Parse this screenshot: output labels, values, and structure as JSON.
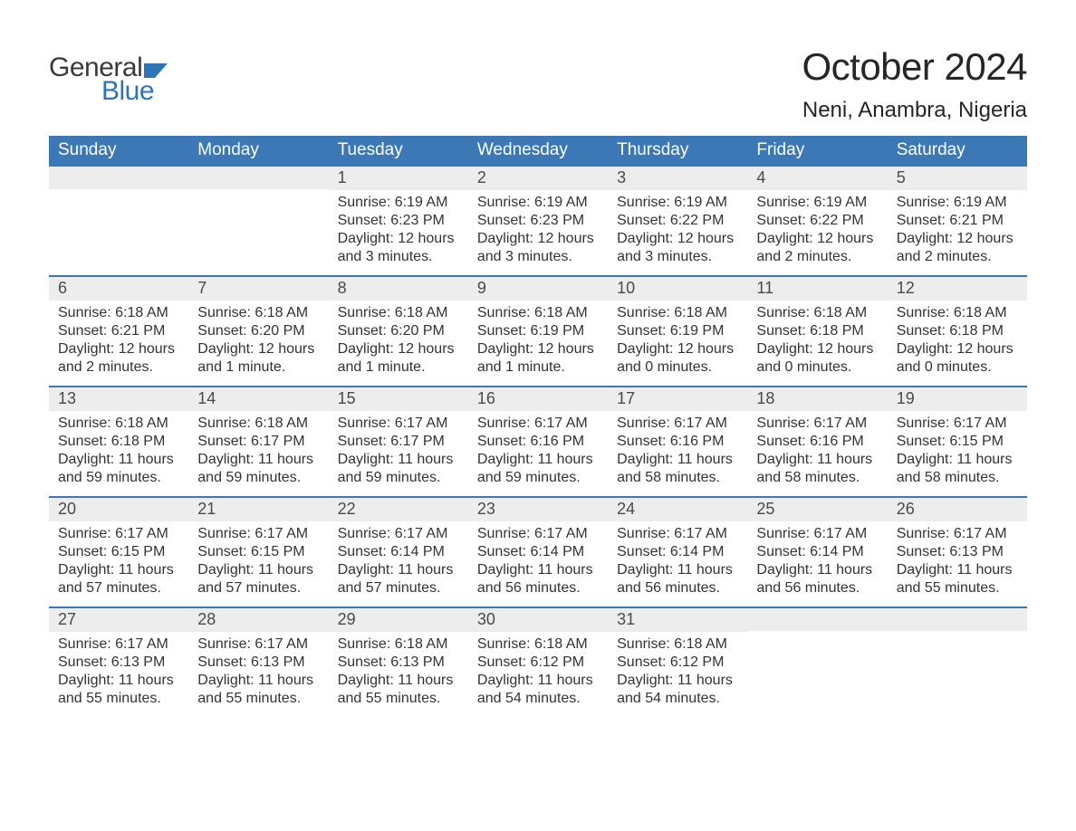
{
  "logo": {
    "text_general": "General",
    "text_blue": "Blue",
    "flag_color": "#2e75b6"
  },
  "title": "October 2024",
  "location": "Neni, Anambra, Nigeria",
  "colors": {
    "header_bg": "#3b78b5",
    "header_text": "#ffffff",
    "daynum_bg": "#ededed",
    "week_border": "#3b78b5",
    "body_text": "#333333",
    "title_text": "#262626"
  },
  "day_names": [
    "Sunday",
    "Monday",
    "Tuesday",
    "Wednesday",
    "Thursday",
    "Friday",
    "Saturday"
  ],
  "weeks": [
    [
      {
        "day": "",
        "sunrise": "",
        "sunset": "",
        "daylight1": "",
        "daylight2": ""
      },
      {
        "day": "",
        "sunrise": "",
        "sunset": "",
        "daylight1": "",
        "daylight2": ""
      },
      {
        "day": "1",
        "sunrise": "Sunrise: 6:19 AM",
        "sunset": "Sunset: 6:23 PM",
        "daylight1": "Daylight: 12 hours",
        "daylight2": "and 3 minutes."
      },
      {
        "day": "2",
        "sunrise": "Sunrise: 6:19 AM",
        "sunset": "Sunset: 6:23 PM",
        "daylight1": "Daylight: 12 hours",
        "daylight2": "and 3 minutes."
      },
      {
        "day": "3",
        "sunrise": "Sunrise: 6:19 AM",
        "sunset": "Sunset: 6:22 PM",
        "daylight1": "Daylight: 12 hours",
        "daylight2": "and 3 minutes."
      },
      {
        "day": "4",
        "sunrise": "Sunrise: 6:19 AM",
        "sunset": "Sunset: 6:22 PM",
        "daylight1": "Daylight: 12 hours",
        "daylight2": "and 2 minutes."
      },
      {
        "day": "5",
        "sunrise": "Sunrise: 6:19 AM",
        "sunset": "Sunset: 6:21 PM",
        "daylight1": "Daylight: 12 hours",
        "daylight2": "and 2 minutes."
      }
    ],
    [
      {
        "day": "6",
        "sunrise": "Sunrise: 6:18 AM",
        "sunset": "Sunset: 6:21 PM",
        "daylight1": "Daylight: 12 hours",
        "daylight2": "and 2 minutes."
      },
      {
        "day": "7",
        "sunrise": "Sunrise: 6:18 AM",
        "sunset": "Sunset: 6:20 PM",
        "daylight1": "Daylight: 12 hours",
        "daylight2": "and 1 minute."
      },
      {
        "day": "8",
        "sunrise": "Sunrise: 6:18 AM",
        "sunset": "Sunset: 6:20 PM",
        "daylight1": "Daylight: 12 hours",
        "daylight2": "and 1 minute."
      },
      {
        "day": "9",
        "sunrise": "Sunrise: 6:18 AM",
        "sunset": "Sunset: 6:19 PM",
        "daylight1": "Daylight: 12 hours",
        "daylight2": "and 1 minute."
      },
      {
        "day": "10",
        "sunrise": "Sunrise: 6:18 AM",
        "sunset": "Sunset: 6:19 PM",
        "daylight1": "Daylight: 12 hours",
        "daylight2": "and 0 minutes."
      },
      {
        "day": "11",
        "sunrise": "Sunrise: 6:18 AM",
        "sunset": "Sunset: 6:18 PM",
        "daylight1": "Daylight: 12 hours",
        "daylight2": "and 0 minutes."
      },
      {
        "day": "12",
        "sunrise": "Sunrise: 6:18 AM",
        "sunset": "Sunset: 6:18 PM",
        "daylight1": "Daylight: 12 hours",
        "daylight2": "and 0 minutes."
      }
    ],
    [
      {
        "day": "13",
        "sunrise": "Sunrise: 6:18 AM",
        "sunset": "Sunset: 6:18 PM",
        "daylight1": "Daylight: 11 hours",
        "daylight2": "and 59 minutes."
      },
      {
        "day": "14",
        "sunrise": "Sunrise: 6:18 AM",
        "sunset": "Sunset: 6:17 PM",
        "daylight1": "Daylight: 11 hours",
        "daylight2": "and 59 minutes."
      },
      {
        "day": "15",
        "sunrise": "Sunrise: 6:17 AM",
        "sunset": "Sunset: 6:17 PM",
        "daylight1": "Daylight: 11 hours",
        "daylight2": "and 59 minutes."
      },
      {
        "day": "16",
        "sunrise": "Sunrise: 6:17 AM",
        "sunset": "Sunset: 6:16 PM",
        "daylight1": "Daylight: 11 hours",
        "daylight2": "and 59 minutes."
      },
      {
        "day": "17",
        "sunrise": "Sunrise: 6:17 AM",
        "sunset": "Sunset: 6:16 PM",
        "daylight1": "Daylight: 11 hours",
        "daylight2": "and 58 minutes."
      },
      {
        "day": "18",
        "sunrise": "Sunrise: 6:17 AM",
        "sunset": "Sunset: 6:16 PM",
        "daylight1": "Daylight: 11 hours",
        "daylight2": "and 58 minutes."
      },
      {
        "day": "19",
        "sunrise": "Sunrise: 6:17 AM",
        "sunset": "Sunset: 6:15 PM",
        "daylight1": "Daylight: 11 hours",
        "daylight2": "and 58 minutes."
      }
    ],
    [
      {
        "day": "20",
        "sunrise": "Sunrise: 6:17 AM",
        "sunset": "Sunset: 6:15 PM",
        "daylight1": "Daylight: 11 hours",
        "daylight2": "and 57 minutes."
      },
      {
        "day": "21",
        "sunrise": "Sunrise: 6:17 AM",
        "sunset": "Sunset: 6:15 PM",
        "daylight1": "Daylight: 11 hours",
        "daylight2": "and 57 minutes."
      },
      {
        "day": "22",
        "sunrise": "Sunrise: 6:17 AM",
        "sunset": "Sunset: 6:14 PM",
        "daylight1": "Daylight: 11 hours",
        "daylight2": "and 57 minutes."
      },
      {
        "day": "23",
        "sunrise": "Sunrise: 6:17 AM",
        "sunset": "Sunset: 6:14 PM",
        "daylight1": "Daylight: 11 hours",
        "daylight2": "and 56 minutes."
      },
      {
        "day": "24",
        "sunrise": "Sunrise: 6:17 AM",
        "sunset": "Sunset: 6:14 PM",
        "daylight1": "Daylight: 11 hours",
        "daylight2": "and 56 minutes."
      },
      {
        "day": "25",
        "sunrise": "Sunrise: 6:17 AM",
        "sunset": "Sunset: 6:14 PM",
        "daylight1": "Daylight: 11 hours",
        "daylight2": "and 56 minutes."
      },
      {
        "day": "26",
        "sunrise": "Sunrise: 6:17 AM",
        "sunset": "Sunset: 6:13 PM",
        "daylight1": "Daylight: 11 hours",
        "daylight2": "and 55 minutes."
      }
    ],
    [
      {
        "day": "27",
        "sunrise": "Sunrise: 6:17 AM",
        "sunset": "Sunset: 6:13 PM",
        "daylight1": "Daylight: 11 hours",
        "daylight2": "and 55 minutes."
      },
      {
        "day": "28",
        "sunrise": "Sunrise: 6:17 AM",
        "sunset": "Sunset: 6:13 PM",
        "daylight1": "Daylight: 11 hours",
        "daylight2": "and 55 minutes."
      },
      {
        "day": "29",
        "sunrise": "Sunrise: 6:18 AM",
        "sunset": "Sunset: 6:13 PM",
        "daylight1": "Daylight: 11 hours",
        "daylight2": "and 55 minutes."
      },
      {
        "day": "30",
        "sunrise": "Sunrise: 6:18 AM",
        "sunset": "Sunset: 6:12 PM",
        "daylight1": "Daylight: 11 hours",
        "daylight2": "and 54 minutes."
      },
      {
        "day": "31",
        "sunrise": "Sunrise: 6:18 AM",
        "sunset": "Sunset: 6:12 PM",
        "daylight1": "Daylight: 11 hours",
        "daylight2": "and 54 minutes."
      },
      {
        "day": "",
        "sunrise": "",
        "sunset": "",
        "daylight1": "",
        "daylight2": ""
      },
      {
        "day": "",
        "sunrise": "",
        "sunset": "",
        "daylight1": "",
        "daylight2": ""
      }
    ]
  ]
}
